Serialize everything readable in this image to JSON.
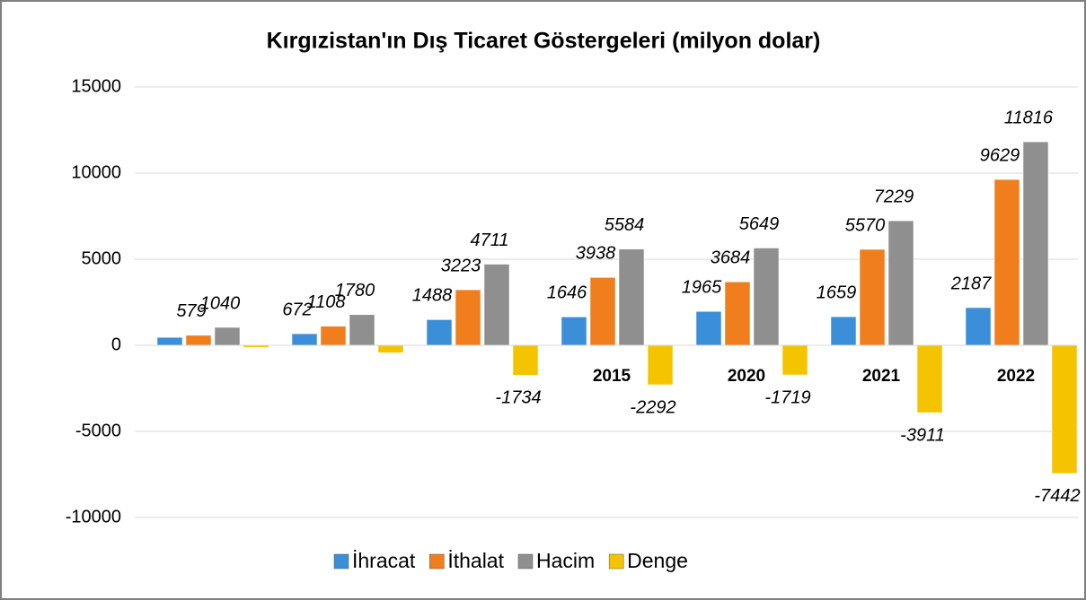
{
  "chart_data": {
    "type": "bar",
    "title": "Kırgızistan'ın Dış Ticaret Göstergeleri  (milyon dolar)",
    "categories": [
      null,
      null,
      null,
      "2015",
      "2020",
      "2021",
      "2022"
    ],
    "series": [
      {
        "name": "İhracat",
        "color": "#3b8fd8",
        "values": [
          460,
          672,
          1488,
          1646,
          1965,
          1659,
          2187
        ]
      },
      {
        "name": "İthalat",
        "color": "#f07e1c",
        "values": [
          579,
          1108,
          3223,
          3938,
          3684,
          5570,
          9629
        ]
      },
      {
        "name": "Hacim",
        "color": "#8f8f8f",
        "values": [
          1040,
          1780,
          4711,
          5584,
          5649,
          7229,
          11816
        ]
      },
      {
        "name": "Denge",
        "color": "#f5c400",
        "values": [
          -119,
          -436,
          -1734,
          -2292,
          -1719,
          -3911,
          -7442
        ]
      }
    ],
    "ylim": [
      -10000,
      15000
    ],
    "yticks": [
      -10000,
      -5000,
      0,
      5000,
      10000,
      15000
    ],
    "grid": true,
    "legend": "bottom"
  }
}
